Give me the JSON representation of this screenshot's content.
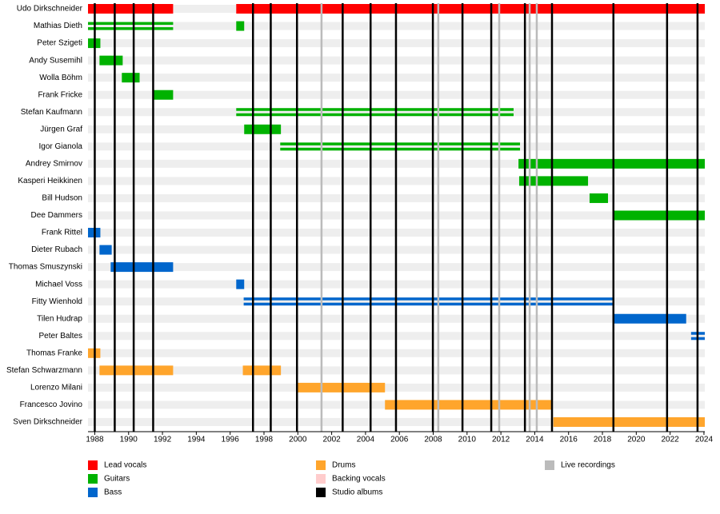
{
  "chart_data": {
    "type": "timeline",
    "xlim": [
      1987.6,
      2024.05
    ],
    "xticks": [
      1988,
      1990,
      1992,
      1994,
      1996,
      1998,
      2000,
      2002,
      2004,
      2006,
      2008,
      2010,
      2012,
      2014,
      2016,
      2018,
      2020,
      2022,
      2024
    ],
    "series": [
      {
        "name": "Lead vocals",
        "color": "#ff0000"
      },
      {
        "name": "Guitars",
        "color": "#00b200"
      },
      {
        "name": "Bass",
        "color": "#0066cc"
      },
      {
        "name": "Drums",
        "color": "#ffa52c"
      },
      {
        "name": "Backing vocals",
        "color": "#ffcccc"
      }
    ],
    "markers": [
      {
        "name": "Studio albums",
        "color": "#000000",
        "values": [
          1988.0,
          1989.18,
          1990.3,
          1991.45,
          1997.35,
          1998.4,
          1999.95,
          2002.65,
          2004.3,
          2005.8,
          2007.98,
          2009.73,
          2011.43,
          2013.42,
          2015.02,
          2018.65,
          2021.82,
          2023.62
        ]
      },
      {
        "name": "Live recordings",
        "color": "#bbbbbb",
        "values": [
          2001.4,
          2008.3,
          2011.9,
          2013.7,
          2014.12
        ]
      }
    ],
    "rows": [
      {
        "name": "Udo Dirkschneider",
        "bars": [
          {
            "start": 1987.6,
            "end": 1992.63,
            "role": 0
          },
          {
            "start": 1996.36,
            "end": 2024.05,
            "role": 0
          }
        ]
      },
      {
        "name": "Mathias Dieth",
        "bars": [
          {
            "start": 1987.6,
            "end": 1992.63,
            "role": 1,
            "double": true
          },
          {
            "start": 1996.36,
            "end": 1996.83,
            "role": 1
          }
        ]
      },
      {
        "name": "Peter Szigeti",
        "bars": [
          {
            "start": 1987.6,
            "end": 1988.33,
            "role": 1
          }
        ]
      },
      {
        "name": "Andy Susemihl",
        "bars": [
          {
            "start": 1988.28,
            "end": 1989.65,
            "role": 1
          }
        ]
      },
      {
        "name": "Wolla Böhm",
        "bars": [
          {
            "start": 1989.6,
            "end": 1990.65,
            "role": 1
          }
        ]
      },
      {
        "name": "Frank Fricke",
        "bars": [
          {
            "start": 1991.5,
            "end": 1992.63,
            "role": 1
          }
        ]
      },
      {
        "name": "Stefan Kaufmann",
        "bars": [
          {
            "start": 1996.36,
            "end": 2012.75,
            "role": 1,
            "double": true
          }
        ]
      },
      {
        "name": "Jürgen Graf",
        "bars": [
          {
            "start": 1996.83,
            "end": 1999.0,
            "role": 1
          }
        ]
      },
      {
        "name": "Igor Gianola",
        "bars": [
          {
            "start": 1998.96,
            "end": 2013.13,
            "role": 1,
            "double": true
          }
        ]
      },
      {
        "name": "Andrey Smirnov",
        "bars": [
          {
            "start": 2013.04,
            "end": 2024.05,
            "role": 1
          }
        ]
      },
      {
        "name": "Kasperi Heikkinen",
        "bars": [
          {
            "start": 2013.08,
            "end": 2017.15,
            "role": 1
          }
        ]
      },
      {
        "name": "Bill Hudson",
        "bars": [
          {
            "start": 2017.24,
            "end": 2018.33,
            "role": 1
          }
        ]
      },
      {
        "name": "Dee Dammers",
        "bars": [
          {
            "start": 2018.7,
            "end": 2024.05,
            "role": 1
          }
        ]
      },
      {
        "name": "Frank Rittel",
        "bars": [
          {
            "start": 1987.6,
            "end": 1988.33,
            "role": 2
          }
        ]
      },
      {
        "name": "Dieter Rubach",
        "bars": [
          {
            "start": 1988.28,
            "end": 1989.0,
            "role": 2
          }
        ]
      },
      {
        "name": "Thomas Smuszynski",
        "bars": [
          {
            "start": 1988.94,
            "end": 1992.63,
            "role": 2
          }
        ]
      },
      {
        "name": "Michael Voss",
        "bars": [
          {
            "start": 1996.36,
            "end": 1996.83,
            "role": 2
          }
        ]
      },
      {
        "name": "Fitty Wienhold",
        "bars": [
          {
            "start": 1996.8,
            "end": 2018.7,
            "role": 2,
            "double": true
          }
        ]
      },
      {
        "name": "Tilen Hudrap",
        "bars": [
          {
            "start": 2018.7,
            "end": 2022.95,
            "role": 2
          }
        ]
      },
      {
        "name": "Peter Baltes",
        "bars": [
          {
            "start": 2023.24,
            "end": 2024.05,
            "role": 2,
            "double": true
          }
        ]
      },
      {
        "name": "Thomas Franke",
        "bars": [
          {
            "start": 1987.6,
            "end": 1988.33,
            "role": 3
          }
        ]
      },
      {
        "name": "Stefan Schwarzmann",
        "bars": [
          {
            "start": 1988.28,
            "end": 1992.63,
            "role": 3
          },
          {
            "start": 1996.75,
            "end": 1999.0,
            "role": 3
          }
        ]
      },
      {
        "name": "Lorenzo Milani",
        "bars": [
          {
            "start": 2000.0,
            "end": 2005.15,
            "role": 3
          }
        ]
      },
      {
        "name": "Francesco Jovino",
        "bars": [
          {
            "start": 2005.15,
            "end": 2015.02,
            "role": 3
          }
        ]
      },
      {
        "name": "Sven Dirkschneider",
        "bars": [
          {
            "start": 2015.1,
            "end": 2024.05,
            "role": 3
          }
        ]
      }
    ]
  }
}
